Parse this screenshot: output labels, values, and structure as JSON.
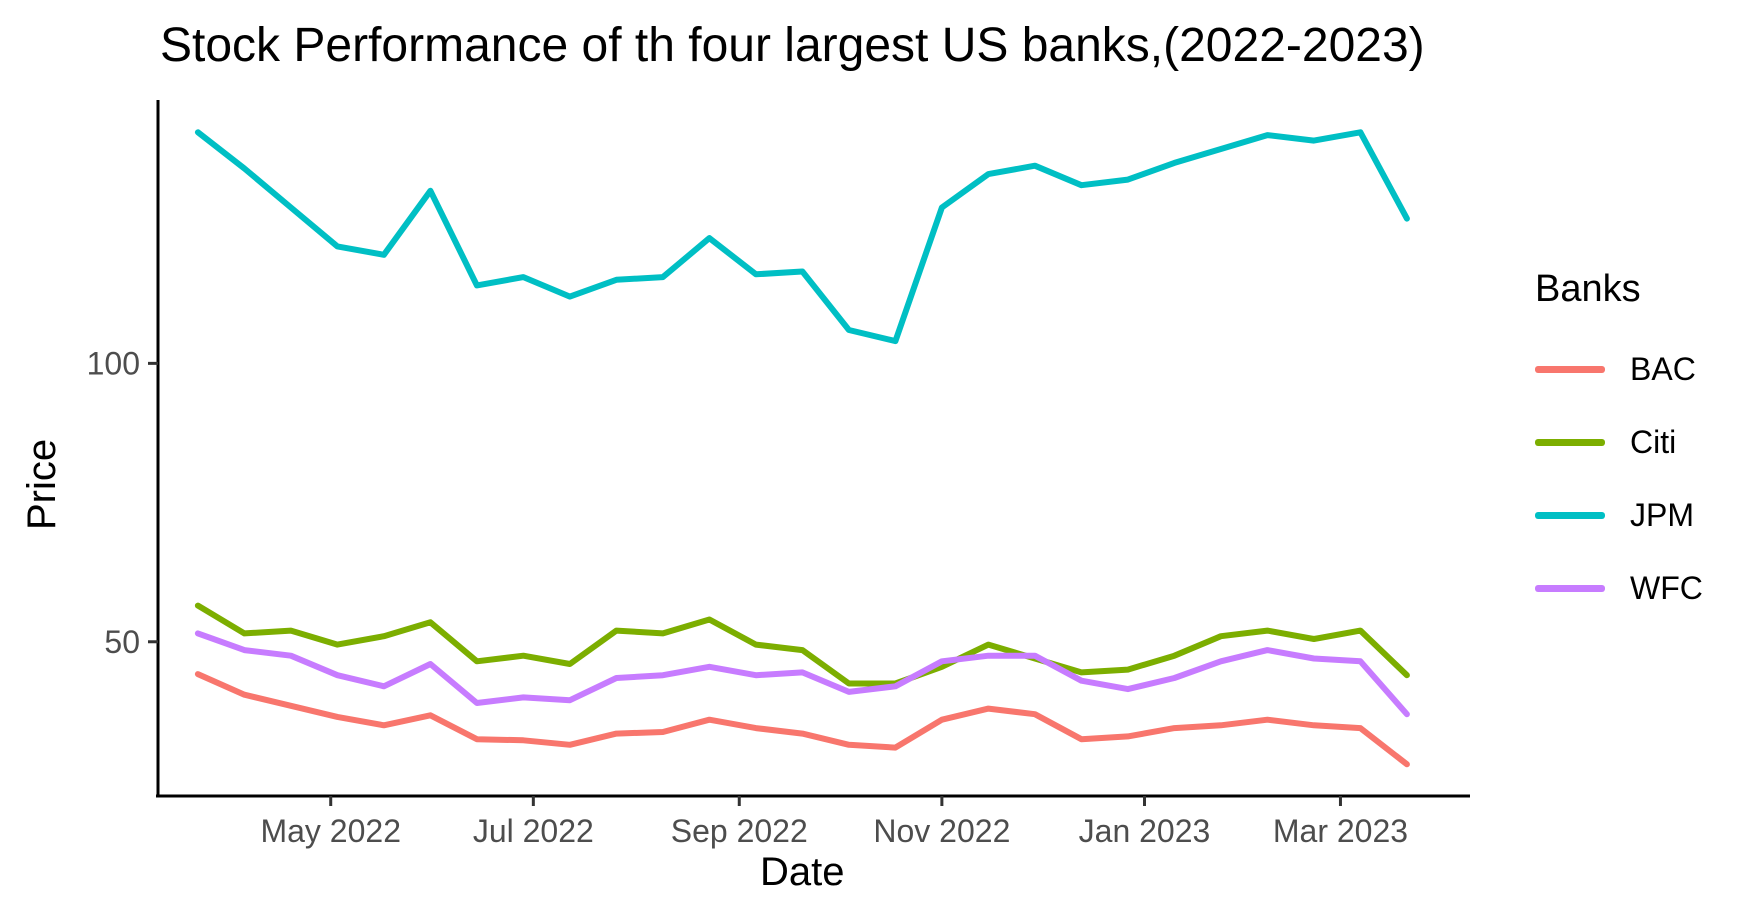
{
  "chart_data": {
    "type": "line",
    "title": "Stock Performance of th four largest US banks,(2022-2023)",
    "xlabel": "Date",
    "ylabel": "Price",
    "x_ticks": [
      "May 2022",
      "Jul 2022",
      "Sep 2022",
      "Nov 2022",
      "Jan 2023",
      "Mar 2023"
    ],
    "y_ticks": [
      50,
      100
    ],
    "xlim": [
      "2022-03-10",
      "2023-04-09"
    ],
    "ylim": [
      22.3,
      147.3
    ],
    "grid": false,
    "legend": {
      "title": "Banks",
      "position": "right"
    },
    "x": [
      "2022-03-22",
      "2022-04-05",
      "2022-04-19",
      "2022-05-03",
      "2022-05-17",
      "2022-05-31",
      "2022-06-14",
      "2022-06-28",
      "2022-07-12",
      "2022-07-26",
      "2022-08-09",
      "2022-08-23",
      "2022-09-06",
      "2022-09-20",
      "2022-10-04",
      "2022-10-18",
      "2022-11-01",
      "2022-11-15",
      "2022-11-29",
      "2022-12-13",
      "2022-12-27",
      "2023-01-10",
      "2023-01-24",
      "2023-02-07",
      "2023-02-21",
      "2023-03-07",
      "2023-03-21"
    ],
    "series": [
      {
        "name": "BAC",
        "color": "#F8766D",
        "values": [
          44.2,
          40.5,
          38.5,
          36.5,
          35.0,
          36.8,
          32.5,
          32.3,
          31.5,
          33.5,
          33.8,
          36.0,
          34.5,
          33.5,
          31.5,
          31.0,
          36.0,
          38.0,
          37.0,
          32.5,
          33.0,
          34.5,
          35.0,
          36.0,
          35.0,
          34.5,
          28.0
        ]
      },
      {
        "name": "Citi",
        "color": "#7CAE00",
        "values": [
          56.5,
          51.5,
          52.0,
          49.5,
          51.0,
          53.5,
          46.5,
          47.5,
          46.0,
          52.0,
          51.5,
          54.0,
          49.5,
          48.5,
          42.5,
          42.5,
          45.5,
          49.5,
          47.0,
          44.5,
          45.0,
          47.5,
          51.0,
          52.0,
          50.5,
          52.0,
          44.0
        ]
      },
      {
        "name": "JPM",
        "color": "#00BFC4",
        "values": [
          141.5,
          135.0,
          128.0,
          121.0,
          119.5,
          131.0,
          114.0,
          115.5,
          112.0,
          115.0,
          115.5,
          122.5,
          116.0,
          116.5,
          106.0,
          104.0,
          128.0,
          134.0,
          135.5,
          132.0,
          133.0,
          136.0,
          138.5,
          141.0,
          140.0,
          141.5,
          126.0
        ]
      },
      {
        "name": "WFC",
        "color": "#C77CFF",
        "values": [
          51.5,
          48.5,
          47.5,
          44.0,
          42.0,
          46.0,
          39.0,
          40.0,
          39.5,
          43.5,
          44.0,
          45.5,
          44.0,
          44.5,
          41.0,
          42.0,
          46.5,
          47.5,
          47.5,
          43.0,
          41.5,
          43.5,
          46.5,
          48.5,
          47.0,
          46.5,
          37.0
        ]
      }
    ]
  }
}
